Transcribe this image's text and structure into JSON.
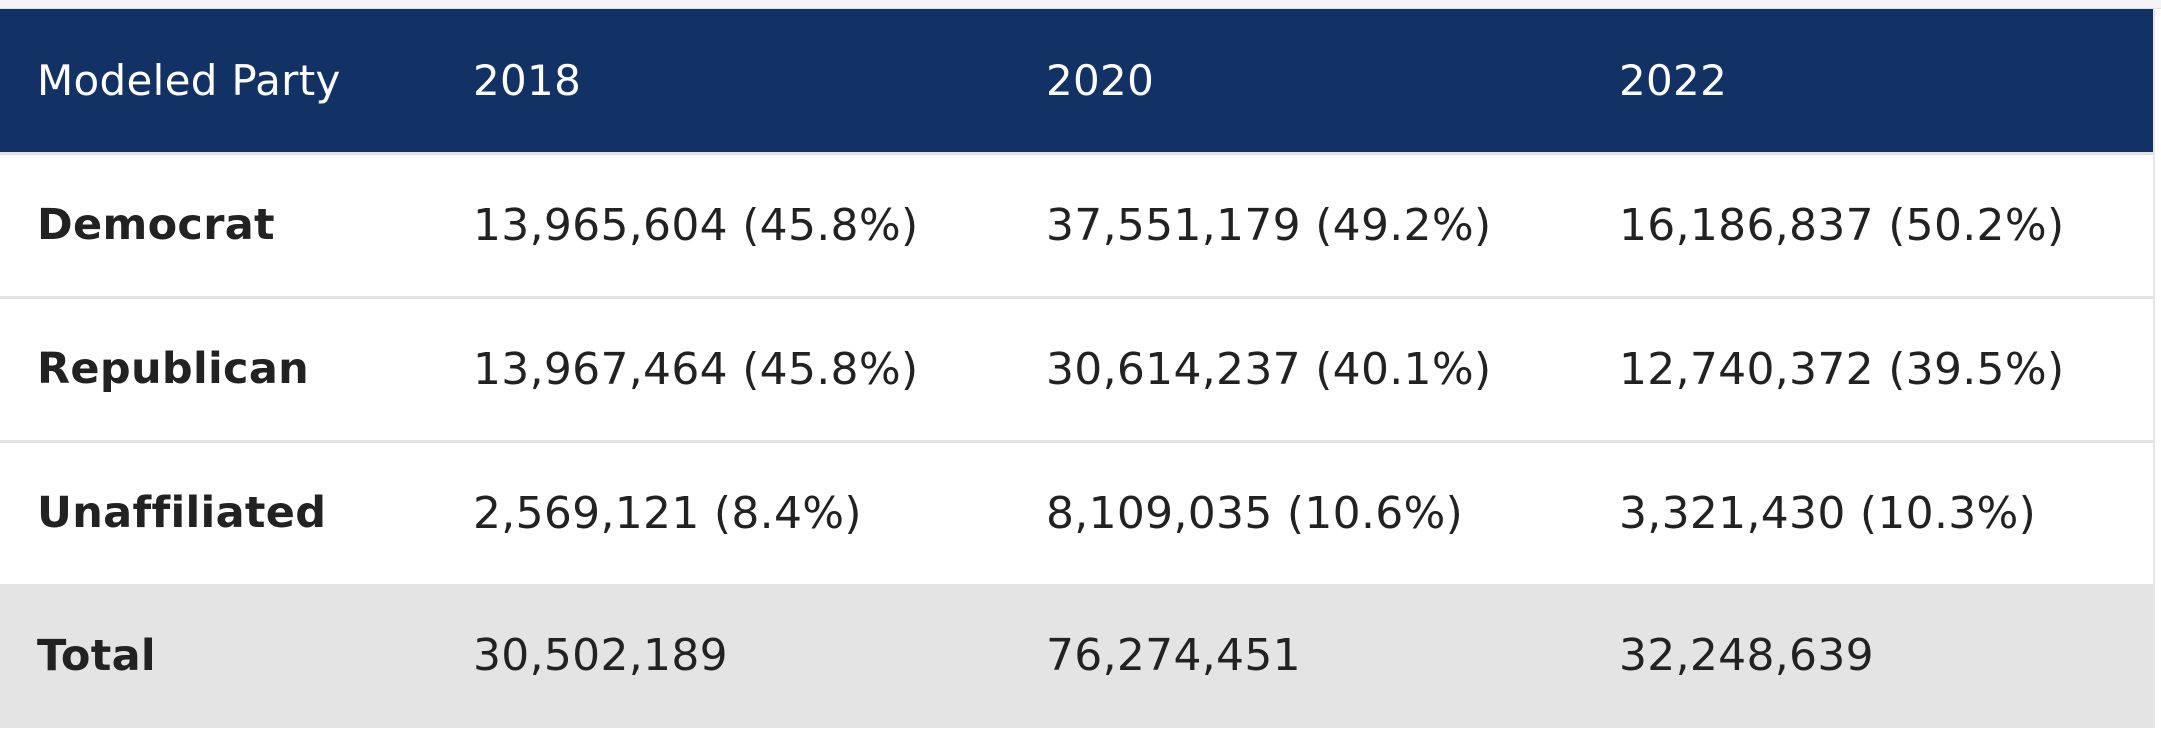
{
  "table": {
    "headers": [
      "Modeled Party",
      "2018",
      "2020",
      "2022"
    ],
    "rows": [
      {
        "label": "Democrat",
        "cells": [
          "13,965,604 (45.8%)",
          "37,551,179 (49.2%)",
          "16,186,837 (50.2%)"
        ]
      },
      {
        "label": "Republican",
        "cells": [
          "13,967,464 (45.8%)",
          "30,614,237 (40.1%)",
          "12,740,372 (39.5%)"
        ]
      },
      {
        "label": "Unaffiliated",
        "cells": [
          "2,569,121 (8.4%)",
          "8,109,035 (10.6%)",
          "3,321,430 (10.3%)"
        ]
      }
    ],
    "total": {
      "label": "Total",
      "cells": [
        "30,502,189",
        "76,274,451",
        "32,248,639"
      ]
    }
  },
  "colors": {
    "header_bg": "#123266",
    "header_text": "#ffffff",
    "total_bg": "#e4e4e4",
    "row_divider": "#e4e4e4"
  }
}
